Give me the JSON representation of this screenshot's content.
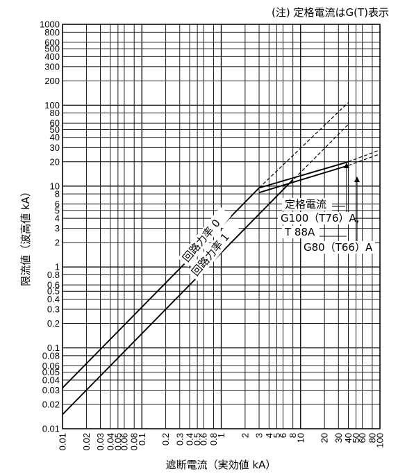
{
  "chart_data": {
    "type": "line",
    "note": "(注) 定格電流はG(T)表示",
    "xlabel": "遮断電流（実効値 kA）",
    "ylabel": "限流値（波高値 kA）",
    "x_scale": "log",
    "y_scale": "log",
    "xlim": [
      0.01,
      100
    ],
    "ylim": [
      0.01,
      1000
    ],
    "grid": true,
    "x_ticks": [
      0.01,
      0.02,
      0.03,
      0.04,
      0.05,
      0.06,
      0.08,
      0.1,
      0.2,
      0.3,
      0.4,
      0.5,
      0.6,
      0.8,
      1,
      2,
      3,
      4,
      5,
      6,
      8,
      10,
      20,
      30,
      40,
      50,
      60,
      80,
      100
    ],
    "x_tick_labels": [
      "0.01",
      "0.02",
      "0.03",
      "0.04",
      "0.05",
      "0.06",
      "0.08",
      "0.1",
      "0.2",
      "0.3",
      "0.4",
      "0.5",
      "0.6",
      "0.8",
      "1",
      "2",
      "3",
      "4",
      "5",
      "6",
      "8",
      "10",
      "20",
      "30",
      "40",
      "50",
      "60",
      "80",
      "100"
    ],
    "y_ticks": [
      0.01,
      0.02,
      0.03,
      0.04,
      0.05,
      0.06,
      0.08,
      0.1,
      0.2,
      0.3,
      0.4,
      0.5,
      0.6,
      0.8,
      1,
      2,
      3,
      4,
      5,
      6,
      8,
      10,
      20,
      30,
      40,
      50,
      60,
      80,
      100,
      200,
      300,
      400,
      500,
      600,
      800,
      1000
    ],
    "y_tick_labels": [
      "0.01",
      "0.02",
      "0.03",
      "0.04",
      "0.05",
      "0.06",
      "0.08",
      "0.1",
      "0.2",
      "0.3",
      "0.4",
      "0.5",
      "0.6",
      "0.8",
      "1",
      "2",
      "3",
      "4",
      "5",
      "6",
      "8",
      "10",
      "20",
      "30",
      "40",
      "50",
      "60",
      "80",
      "100",
      "200",
      "300",
      "400",
      "500",
      "600",
      "800",
      "1000"
    ],
    "series": [
      {
        "name": "回路力率 0",
        "style": "solid",
        "points": [
          [
            0.01,
            0.032
          ],
          [
            3,
            9.5
          ]
        ]
      },
      {
        "name": "回路力率 0",
        "style": "dashed",
        "points": [
          [
            3,
            9.5
          ],
          [
            40,
            108
          ]
        ]
      },
      {
        "name": "回路力率 1",
        "style": "solid",
        "points": [
          [
            0.01,
            0.015
          ],
          [
            8,
            12
          ]
        ]
      },
      {
        "name": "回路力率 1",
        "style": "dashed",
        "points": [
          [
            3,
            4.5
          ],
          [
            40,
            58
          ]
        ]
      },
      {
        "name": "G100(T76)A, T88A",
        "style": "solid",
        "points": [
          [
            3,
            9.5
          ],
          [
            40,
            20
          ]
        ]
      },
      {
        "name": "G100(T76)A, T88A",
        "style": "dashed",
        "points": [
          [
            40,
            20
          ],
          [
            100,
            28
          ]
        ]
      },
      {
        "name": "G80(T66)A",
        "style": "solid",
        "points": [
          [
            3,
            8.3
          ],
          [
            40,
            18
          ]
        ]
      },
      {
        "name": "G80(T66)A",
        "style": "dashed",
        "points": [
          [
            40,
            18
          ],
          [
            100,
            25
          ]
        ]
      }
    ],
    "annotations": {
      "pf0": "回路力率 0",
      "pf1": "回路力率 1",
      "rated": "定格電流",
      "g100": "G100（T76）A,",
      "t88": "T 88A",
      "g80": "G80（T66）A"
    }
  }
}
